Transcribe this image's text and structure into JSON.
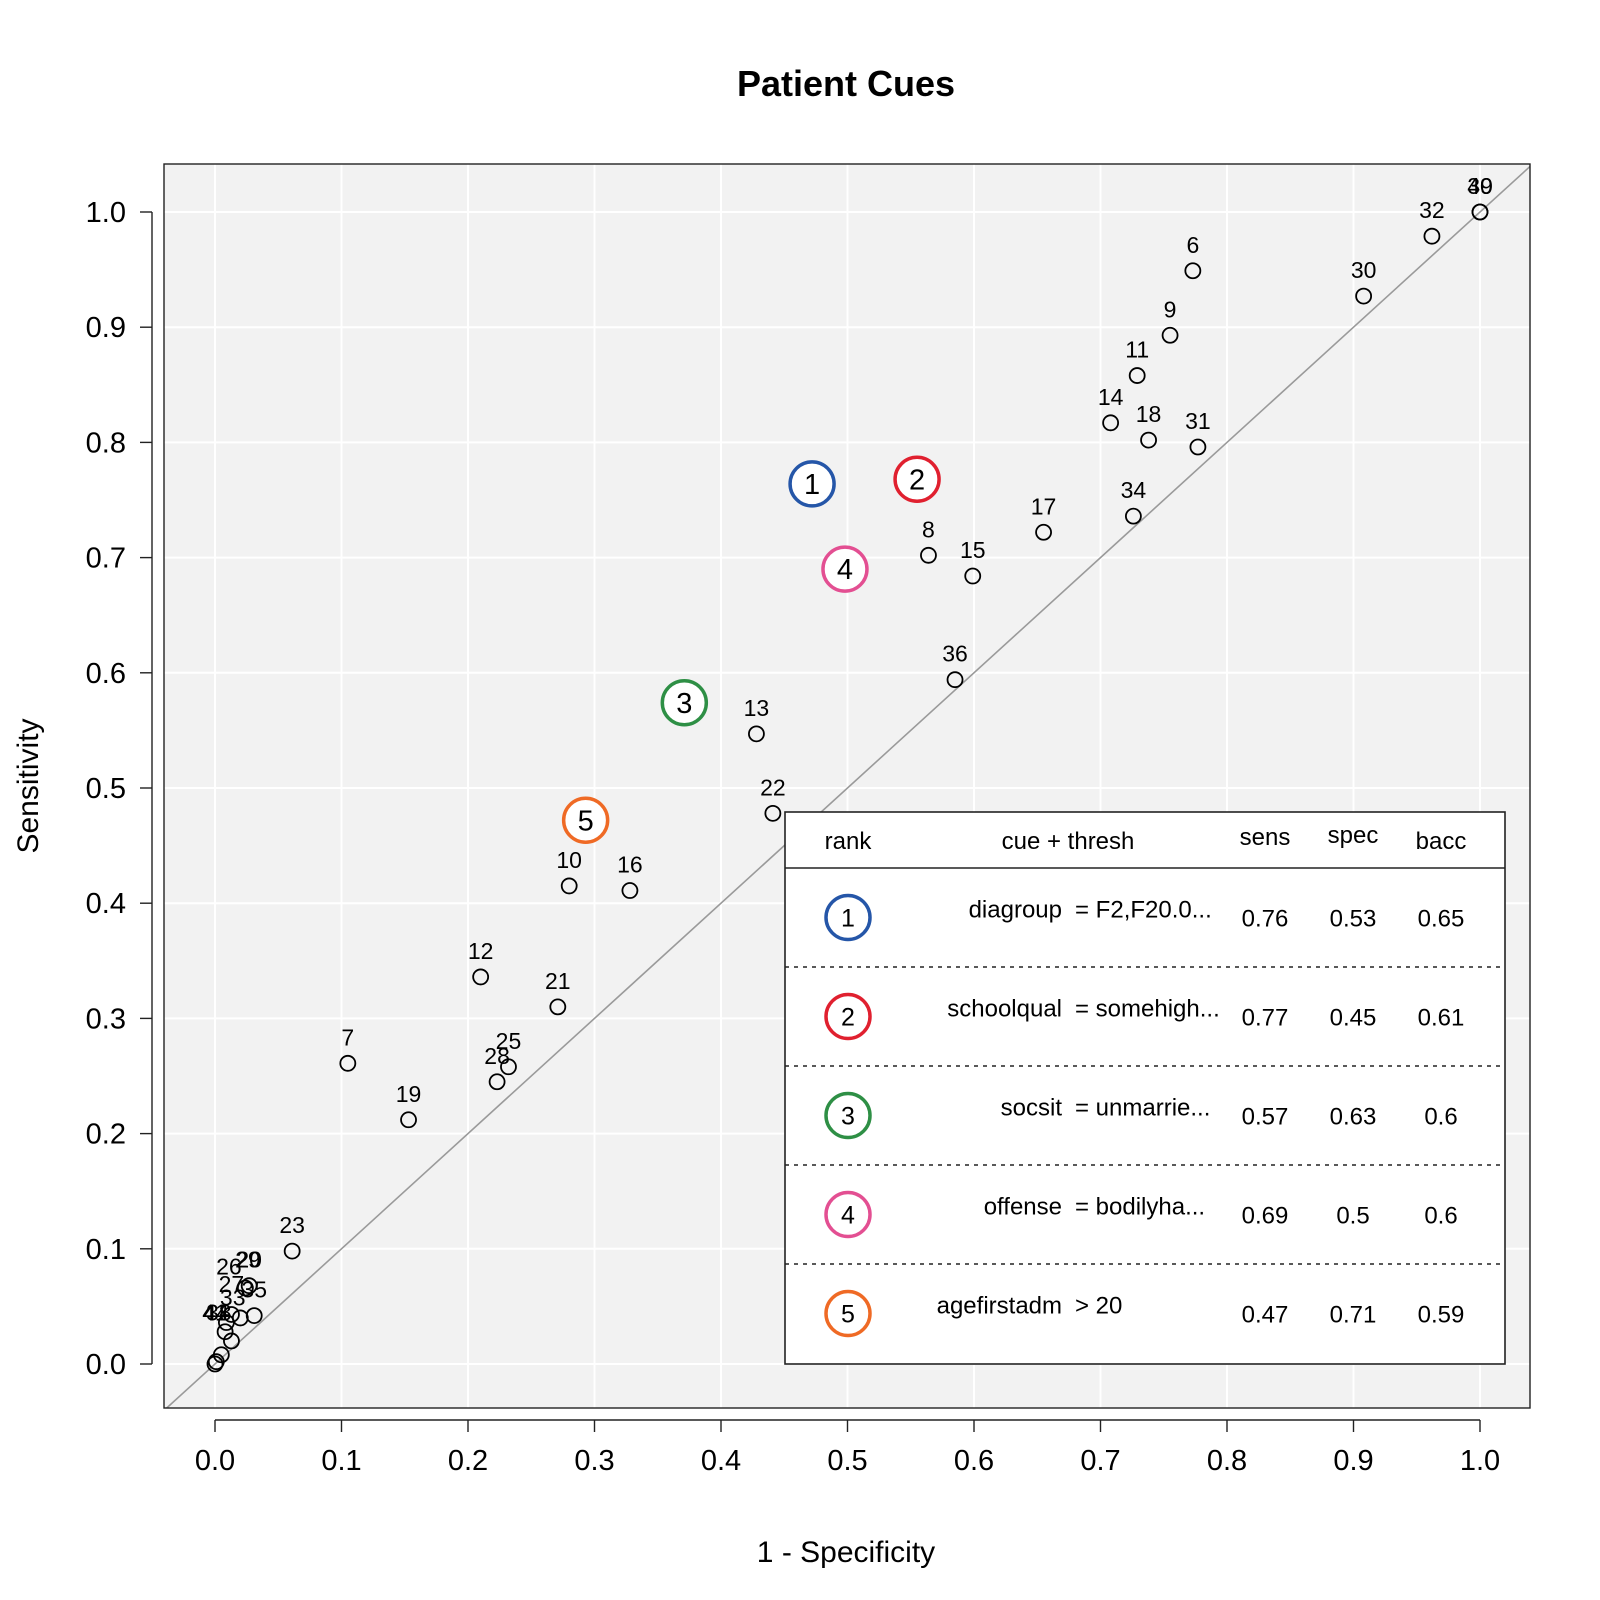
{
  "chart_data": {
    "type": "scatter",
    "title": "Patient Cues",
    "xlabel": "1 - Specificity",
    "ylabel": "Sensitivity",
    "xlim": [
      0,
      1
    ],
    "ylim": [
      0,
      1
    ],
    "x_ticks": [
      "0.0",
      "0.1",
      "0.2",
      "0.3",
      "0.4",
      "0.5",
      "0.6",
      "0.7",
      "0.8",
      "0.9",
      "1.0"
    ],
    "y_ticks": [
      "0.0",
      "0.1",
      "0.2",
      "0.3",
      "0.4",
      "0.5",
      "0.6",
      "0.7",
      "0.8",
      "0.9",
      "1.0"
    ],
    "grid": true,
    "reference_line": "diagonal",
    "points": [
      {
        "label": "6",
        "x": 0.773,
        "y": 0.949
      },
      {
        "label": "32",
        "x": 0.962,
        "y": 0.979
      },
      {
        "label": "30",
        "x": 0.908,
        "y": 0.927
      },
      {
        "label": "39",
        "x": 1.0,
        "y": 1.0
      },
      {
        "label": "40",
        "x": 1.0,
        "y": 1.0
      },
      {
        "label": "9",
        "x": 0.755,
        "y": 0.893
      },
      {
        "label": "11",
        "x": 0.729,
        "y": 0.858
      },
      {
        "label": "14",
        "x": 0.708,
        "y": 0.817
      },
      {
        "label": "18",
        "x": 0.738,
        "y": 0.802
      },
      {
        "label": "31",
        "x": 0.777,
        "y": 0.796
      },
      {
        "label": "34",
        "x": 0.726,
        "y": 0.736
      },
      {
        "label": "17",
        "x": 0.655,
        "y": 0.722
      },
      {
        "label": "8",
        "x": 0.564,
        "y": 0.702
      },
      {
        "label": "15",
        "x": 0.599,
        "y": 0.684
      },
      {
        "label": "36",
        "x": 0.585,
        "y": 0.594
      },
      {
        "label": "13",
        "x": 0.428,
        "y": 0.547
      },
      {
        "label": "22",
        "x": 0.441,
        "y": 0.478
      },
      {
        "label": "10",
        "x": 0.28,
        "y": 0.415
      },
      {
        "label": "16",
        "x": 0.328,
        "y": 0.411
      },
      {
        "label": "12",
        "x": 0.21,
        "y": 0.336
      },
      {
        "label": "21",
        "x": 0.271,
        "y": 0.31
      },
      {
        "label": "7",
        "x": 0.105,
        "y": 0.261
      },
      {
        "label": "25",
        "x": 0.232,
        "y": 0.258
      },
      {
        "label": "28",
        "x": 0.223,
        "y": 0.245
      },
      {
        "label": "19",
        "x": 0.153,
        "y": 0.212
      },
      {
        "label": "23",
        "x": 0.061,
        "y": 0.098
      },
      {
        "label": "20",
        "x": 0.027,
        "y": 0.068
      },
      {
        "label": "35",
        "x": 0.031,
        "y": 0.042
      },
      {
        "label": "",
        "x": 0.024,
        "y": 0.066
      },
      {
        "label": "",
        "x": 0.02,
        "y": 0.04
      },
      {
        "label": "",
        "x": 0.013,
        "y": 0.043
      },
      {
        "label": "",
        "x": 0.009,
        "y": 0.036
      },
      {
        "label": "",
        "x": 0.008,
        "y": 0.028
      },
      {
        "label": "",
        "x": 0.013,
        "y": 0.02
      },
      {
        "label": "",
        "x": 0.005,
        "y": 0.008
      },
      {
        "label": "",
        "x": 0.001,
        "y": 0.002
      },
      {
        "label": "",
        "x": 0.0,
        "y": 0.0
      }
    ],
    "cluster_labels": [
      {
        "text": "26",
        "x": 0.011,
        "y": 0.062
      },
      {
        "text": "27",
        "x": 0.013,
        "y": 0.047
      },
      {
        "text": "29",
        "x": 0.026,
        "y": 0.068
      },
      {
        "text": "33",
        "x": 0.014,
        "y": 0.035
      },
      {
        "text": "38",
        "x": 0.003,
        "y": 0.022
      },
      {
        "text": "41",
        "x": 0.0,
        "y": 0.022
      },
      {
        "text": "44",
        "x": 0.001,
        "y": 0.022
      }
    ],
    "top_cues": [
      {
        "rank": "1",
        "x": 0.472,
        "y": 0.764,
        "color": "#2556a8"
      },
      {
        "rank": "2",
        "x": 0.555,
        "y": 0.768,
        "color": "#e0202f"
      },
      {
        "rank": "3",
        "x": 0.371,
        "y": 0.574,
        "color": "#2e8f45"
      },
      {
        "rank": "4",
        "x": 0.498,
        "y": 0.69,
        "color": "#e34f92"
      },
      {
        "rank": "5",
        "x": 0.293,
        "y": 0.472,
        "color": "#ef6a25"
      }
    ],
    "legend": {
      "placement": "bottom-right",
      "headers": {
        "rank": "rank",
        "cue": "cue + thresh",
        "sens": "sens",
        "spec": "spec",
        "bacc": "bacc"
      },
      "rows": [
        {
          "rank": "1",
          "cue": "diagroup",
          "thresh": "= F2,F20.0...",
          "sens": "0.76",
          "spec": "0.53",
          "bacc": "0.65"
        },
        {
          "rank": "2",
          "cue": "schoolqual",
          "thresh": "= somehigh...",
          "sens": "0.77",
          "spec": "0.45",
          "bacc": "0.61"
        },
        {
          "rank": "3",
          "cue": "socsit",
          "thresh": "= unmarrie...",
          "sens": "0.57",
          "spec": "0.63",
          "bacc": "0.6"
        },
        {
          "rank": "4",
          "cue": "offense",
          "thresh": "= bodilyha...",
          "sens": "0.69",
          "spec": "0.5",
          "bacc": "0.6"
        },
        {
          "rank": "5",
          "cue": "agefirstadm",
          "thresh": "> 20",
          "sens": "0.47",
          "spec": "0.71",
          "bacc": "0.59"
        }
      ]
    }
  }
}
